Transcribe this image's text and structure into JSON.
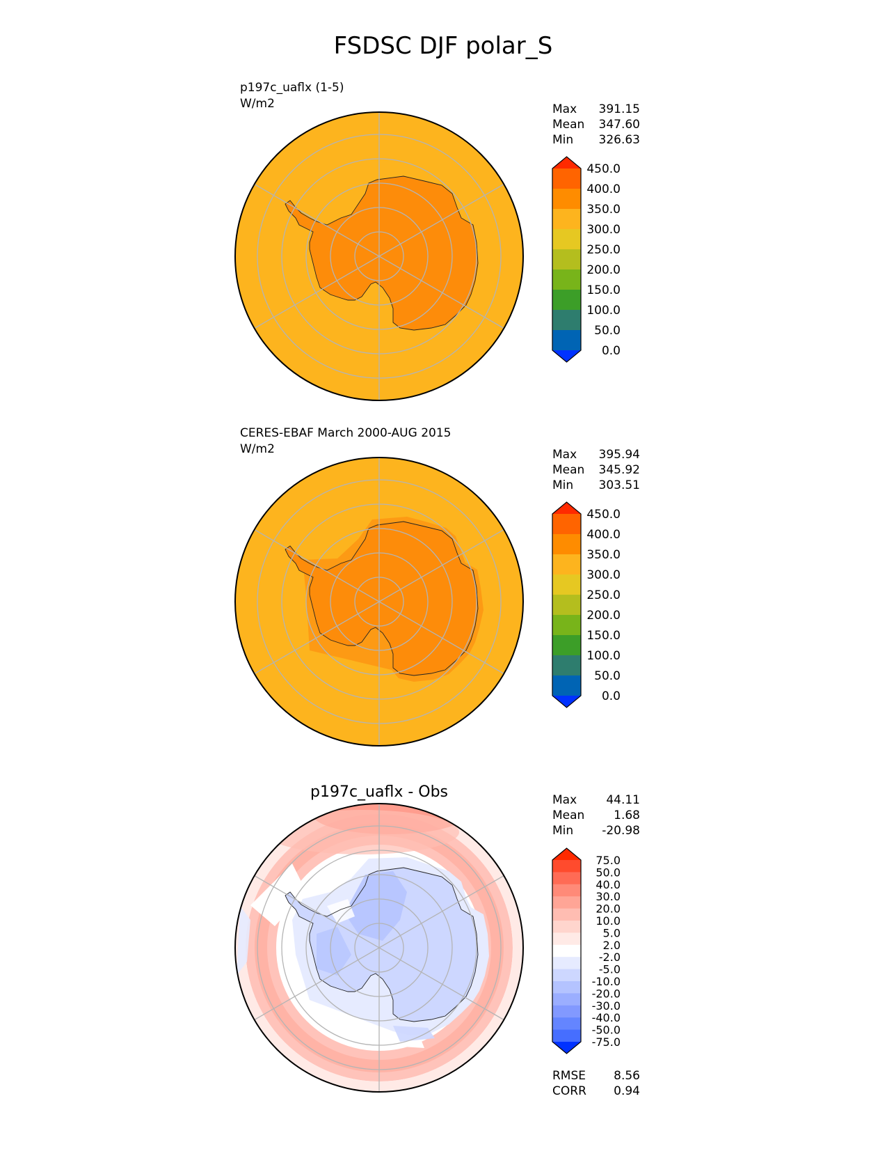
{
  "figure": {
    "title": "FSDSC DJF polar_S"
  },
  "colors": {
    "ocean_fill": "#fdb41e",
    "land_fill": "#fd8c0a",
    "land_edge_fill": "#fd9a14",
    "grid": "#b4b4b4",
    "outline": "#000000",
    "diff_neutral": "#ffffff"
  },
  "chart_data": [
    {
      "type": "heatmap",
      "projection": "south-polar-stereographic",
      "title_left": "p197c_uaflx (1-5)",
      "units": "W/m2",
      "stats": [
        {
          "label": "Max",
          "value": "391.15"
        },
        {
          "label": "Mean",
          "value": "347.60"
        },
        {
          "label": "Min",
          "value": "326.63"
        }
      ],
      "colorbar": {
        "extend": "both",
        "ticks": [
          "450.0",
          "400.0",
          "350.0",
          "300.0",
          "250.0",
          "200.0",
          "150.0",
          "100.0",
          "50.0",
          "0.0"
        ],
        "tick_values": [
          450,
          400,
          350,
          300,
          250,
          200,
          150,
          100,
          50,
          0
        ],
        "colors": [
          "#ff2a00",
          "#ff6400",
          "#fe8c00",
          "#fdb41e",
          "#e6c822",
          "#b4be1e",
          "#78b41a",
          "#3c9e28",
          "#2e7d6e",
          "#0064b4",
          "#0032ff"
        ]
      },
      "fields": {
        "ocean": "300-350",
        "land": "350-400"
      },
      "grid": true
    },
    {
      "type": "heatmap",
      "projection": "south-polar-stereographic",
      "title_left": "CERES-EBAF March 2000-AUG 2015",
      "units": "W/m2",
      "stats": [
        {
          "label": "Max",
          "value": "395.94"
        },
        {
          "label": "Mean",
          "value": "345.92"
        },
        {
          "label": "Min",
          "value": "303.51"
        }
      ],
      "colorbar": {
        "extend": "both",
        "ticks": [
          "450.0",
          "400.0",
          "350.0",
          "300.0",
          "250.0",
          "200.0",
          "150.0",
          "100.0",
          "50.0",
          "0.0"
        ],
        "tick_values": [
          450,
          400,
          350,
          300,
          250,
          200,
          150,
          100,
          50,
          0
        ],
        "colors": [
          "#ff2a00",
          "#ff6400",
          "#fe8c00",
          "#fdb41e",
          "#e6c822",
          "#b4be1e",
          "#78b41a",
          "#3c9e28",
          "#2e7d6e",
          "#0064b4",
          "#0032ff"
        ]
      },
      "fields": {
        "ocean": "300-350",
        "land": "350-400"
      },
      "grid": true
    },
    {
      "type": "heatmap",
      "projection": "south-polar-stereographic",
      "title_center": "p197c_uaflx - Obs",
      "stats": [
        {
          "label": "Max",
          "value": "44.11"
        },
        {
          "label": "Mean",
          "value": "1.68"
        },
        {
          "label": "Min",
          "value": "-20.98"
        }
      ],
      "colorbar": {
        "extend": "both",
        "ticks": [
          "75.0",
          "50.0",
          "40.0",
          "30.0",
          "20.0",
          "10.0",
          "5.0",
          "2.0",
          "-2.0",
          "-5.0",
          "-10.0",
          "-20.0",
          "-30.0",
          "-40.0",
          "-50.0",
          "-75.0"
        ],
        "tick_values": [
          75,
          50,
          40,
          30,
          20,
          10,
          5,
          2,
          -2,
          -5,
          -10,
          -20,
          -30,
          -40,
          -50,
          -75
        ],
        "colors": [
          "#ff2a00",
          "#ff4b2d",
          "#ff6b55",
          "#ff8a78",
          "#ffa596",
          "#ffbdb2",
          "#ffd5cd",
          "#ffeae6",
          "#ffffff",
          "#e6ebff",
          "#cdd7ff",
          "#b4c3ff",
          "#9baeff",
          "#8299ff",
          "#6485ff",
          "#466eff",
          "#0032ff"
        ]
      },
      "metrics": [
        {
          "label": "RMSE",
          "value": "8.56"
        },
        {
          "label": "CORR",
          "value": "0.94"
        }
      ],
      "grid": true
    }
  ]
}
